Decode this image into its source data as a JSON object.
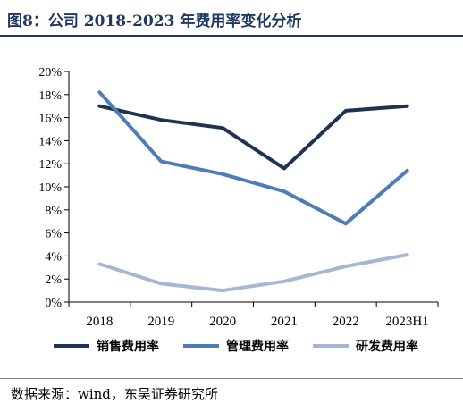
{
  "header": {
    "title": "图8：公司 2018-2023 年费用率变化分析"
  },
  "footer": {
    "source": "数据来源：wind，东吴证券研究所"
  },
  "chart_data": {
    "type": "line",
    "title": "",
    "xlabel": "",
    "ylabel": "",
    "categories": [
      "2018",
      "2019",
      "2020",
      "2021",
      "2022",
      "2023H1"
    ],
    "ylim": [
      0,
      20
    ],
    "yticks": [
      "0%",
      "2%",
      "4%",
      "6%",
      "8%",
      "10%",
      "12%",
      "14%",
      "16%",
      "18%",
      "20%"
    ],
    "grid": false,
    "legend_position": "bottom",
    "series": [
      {
        "name": "销售费用率",
        "color": "#1f3350",
        "values": [
          17.0,
          15.8,
          15.1,
          11.6,
          16.6,
          17.0
        ]
      },
      {
        "name": "管理费用率",
        "color": "#4f7bb8",
        "values": [
          18.2,
          12.2,
          11.1,
          9.6,
          6.8,
          11.4
        ]
      },
      {
        "name": "研发费用率",
        "color": "#a7b6d4",
        "values": [
          3.3,
          1.6,
          1.0,
          1.8,
          3.1,
          4.1
        ]
      }
    ]
  }
}
